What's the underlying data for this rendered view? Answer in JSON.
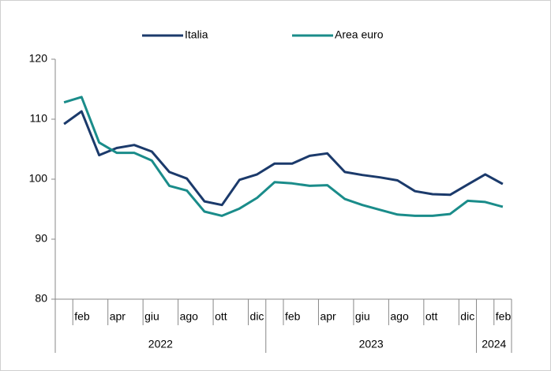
{
  "chart_data": {
    "type": "line",
    "categories": [
      null,
      "feb",
      null,
      "apr",
      null,
      "giu",
      null,
      "ago",
      null,
      "ott",
      null,
      "dic",
      null,
      "feb",
      null,
      "apr",
      null,
      "giu",
      null,
      "ago",
      null,
      "ott",
      null,
      "dic",
      null,
      "feb"
    ],
    "category_years": [
      "2022",
      "2022",
      "2022",
      "2022",
      "2022",
      "2022",
      "2022",
      "2022",
      "2022",
      "2022",
      "2022",
      "2022",
      "2023",
      "2023",
      "2023",
      "2023",
      "2023",
      "2023",
      "2023",
      "2023",
      "2023",
      "2023",
      "2023",
      "2023",
      "2024",
      "2024"
    ],
    "series": [
      {
        "name": "Italia",
        "color": "#1b3a6b",
        "values": [
          109.2,
          111.3,
          104.0,
          105.2,
          105.7,
          104.6,
          101.2,
          100.1,
          96.3,
          95.7,
          99.9,
          100.8,
          102.6,
          102.6,
          103.9,
          104.3,
          101.2,
          100.7,
          100.3,
          99.8,
          98.0,
          97.5,
          97.4,
          99.1,
          100.8,
          99.2
        ]
      },
      {
        "name": "Area euro",
        "color": "#1a8c8a",
        "values": [
          112.8,
          113.7,
          106.1,
          104.4,
          104.4,
          103.1,
          98.9,
          98.1,
          94.6,
          93.9,
          95.1,
          96.9,
          99.5,
          99.3,
          98.9,
          99.0,
          96.7,
          95.7,
          94.9,
          94.1,
          93.9,
          93.9,
          94.2,
          96.4,
          96.2,
          95.4
        ]
      }
    ],
    "ylim": [
      80,
      120
    ],
    "yticks": [
      80,
      90,
      100,
      110,
      120
    ],
    "grid": false,
    "legend": "top"
  }
}
